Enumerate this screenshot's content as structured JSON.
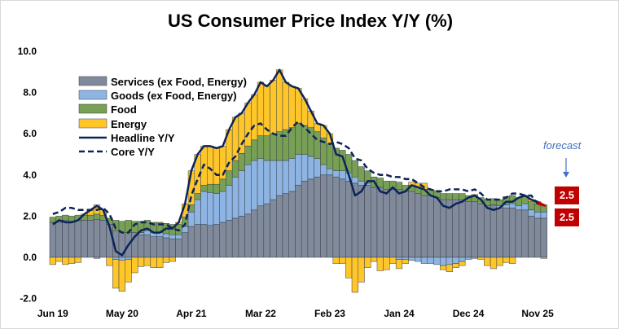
{
  "chart_data": {
    "type": "bar",
    "subtype": "stacked bar with line overlays",
    "title": "US Consumer Price Index Y/Y (%)",
    "xlabel": "",
    "ylabel": "",
    "ylim": [
      -2,
      10
    ],
    "yticks": [
      "10.0",
      "8.0",
      "6.0",
      "4.0",
      "2.0",
      "0.0",
      "-2.0"
    ],
    "ytick_values": [
      10,
      8,
      6,
      4,
      2,
      0,
      -2
    ],
    "xtick_labels": [
      "Jun 19",
      "May 20",
      "Apr 21",
      "Mar 22",
      "Feb 23",
      "Jan 24",
      "Dec 24",
      "Nov 25"
    ],
    "x_start": "Jun 2019",
    "x_end": "Dec 2025",
    "grid": false,
    "legend_position": "top-left",
    "series": [
      {
        "name": "Services (ex Food, Energy)",
        "kind": "bar",
        "color": "#808a9b",
        "values": [
          1.7,
          1.7,
          1.75,
          1.75,
          1.8,
          1.8,
          1.8,
          1.85,
          1.8,
          1.6,
          1.3,
          1.2,
          1.2,
          1.2,
          1.1,
          1.1,
          1.0,
          1.0,
          0.95,
          0.9,
          0.9,
          1.2,
          1.5,
          1.6,
          1.6,
          1.55,
          1.6,
          1.7,
          1.8,
          1.9,
          2.0,
          2.1,
          2.3,
          2.5,
          2.6,
          2.8,
          3.0,
          3.1,
          3.2,
          3.5,
          3.7,
          3.8,
          3.9,
          4.0,
          4.0,
          3.9,
          3.8,
          3.7,
          3.6,
          3.5,
          3.5,
          3.4,
          3.4,
          3.3,
          3.3,
          3.3,
          3.2,
          3.2,
          3.1,
          3.0,
          3.0,
          2.9,
          2.8,
          2.8,
          2.8,
          2.8,
          2.7,
          2.7,
          2.6,
          2.5,
          2.5,
          2.4,
          2.4,
          2.4,
          2.3,
          2.3,
          2.0,
          1.9,
          1.9
        ]
      },
      {
        "name": "Goods (ex Food, Energy)",
        "kind": "bar",
        "color": "#8db4e2",
        "values": [
          0.0,
          0.05,
          0.05,
          0.0,
          0.0,
          0.0,
          0.0,
          -0.05,
          0.0,
          0.0,
          -0.1,
          -0.15,
          -0.1,
          0.0,
          0.1,
          0.2,
          0.2,
          0.2,
          0.2,
          0.2,
          0.2,
          0.3,
          0.7,
          1.2,
          1.6,
          1.6,
          1.5,
          1.5,
          1.7,
          2.0,
          2.2,
          2.4,
          2.4,
          2.3,
          2.1,
          1.9,
          1.7,
          1.6,
          1.6,
          1.5,
          1.3,
          1.1,
          0.9,
          0.5,
          0.3,
          0.3,
          0.4,
          0.4,
          0.3,
          0.2,
          0.1,
          0.0,
          0.0,
          0.0,
          0.0,
          -0.1,
          -0.1,
          -0.15,
          -0.2,
          -0.3,
          -0.3,
          -0.35,
          -0.4,
          -0.35,
          -0.3,
          -0.2,
          -0.1,
          -0.05,
          0.0,
          0.0,
          0.05,
          0.1,
          0.15,
          0.2,
          0.2,
          0.3,
          0.3,
          0.3,
          0.3
        ]
      },
      {
        "name": "Food",
        "kind": "bar",
        "color": "#77a055",
        "values": [
          0.25,
          0.25,
          0.25,
          0.25,
          0.25,
          0.25,
          0.25,
          0.25,
          0.25,
          0.3,
          0.5,
          0.55,
          0.6,
          0.55,
          0.55,
          0.5,
          0.5,
          0.5,
          0.5,
          0.5,
          0.5,
          0.45,
          0.35,
          0.3,
          0.3,
          0.4,
          0.45,
          0.6,
          0.7,
          0.8,
          0.85,
          0.9,
          1.0,
          1.1,
          1.2,
          1.3,
          1.4,
          1.5,
          1.5,
          1.5,
          1.4,
          1.4,
          1.3,
          1.3,
          1.2,
          1.1,
          1.0,
          0.9,
          0.8,
          0.7,
          0.6,
          0.5,
          0.45,
          0.4,
          0.4,
          0.35,
          0.3,
          0.3,
          0.3,
          0.3,
          0.3,
          0.3,
          0.3,
          0.3,
          0.3,
          0.3,
          0.3,
          0.3,
          0.3,
          0.3,
          0.3,
          0.3,
          0.4,
          0.4,
          0.4,
          0.4,
          0.4,
          0.4,
          0.35
        ]
      },
      {
        "name": "Energy",
        "kind": "bar",
        "color": "#ffc629",
        "values": [
          -0.35,
          -0.2,
          -0.35,
          -0.3,
          -0.25,
          0.05,
          0.25,
          0.45,
          0.25,
          -0.4,
          -1.4,
          -1.5,
          -1.1,
          -0.75,
          -0.45,
          -0.4,
          -0.5,
          -0.5,
          -0.25,
          -0.2,
          0.1,
          0.65,
          1.65,
          1.9,
          1.9,
          1.85,
          1.75,
          1.6,
          2.0,
          2.1,
          1.95,
          2.1,
          2.2,
          2.6,
          2.4,
          2.6,
          3.0,
          2.3,
          2.0,
          1.7,
          1.3,
          0.8,
          0.4,
          0.6,
          0.5,
          -0.3,
          -0.3,
          -1.0,
          -1.7,
          -1.2,
          -0.5,
          -0.2,
          -0.65,
          -0.6,
          -0.3,
          -0.45,
          -0.2,
          0.15,
          0.2,
          0.3,
          0.0,
          0.05,
          -0.2,
          -0.35,
          -0.2,
          -0.2,
          0.0,
          0.05,
          -0.1,
          -0.4,
          -0.55,
          -0.4,
          -0.25,
          -0.3,
          0.0,
          0.0,
          0.1,
          0.1,
          -0.05
        ]
      },
      {
        "name": "Headline Y/Y",
        "kind": "line",
        "color": "#0d2458",
        "style": "solid",
        "values": [
          1.6,
          1.8,
          1.7,
          1.7,
          1.8,
          2.1,
          2.3,
          2.5,
          2.3,
          1.5,
          0.3,
          0.1,
          0.6,
          1.0,
          1.3,
          1.4,
          1.2,
          1.2,
          1.4,
          1.4,
          1.7,
          2.6,
          4.2,
          5.0,
          5.4,
          5.4,
          5.3,
          5.4,
          6.2,
          6.8,
          7.0,
          7.5,
          7.9,
          8.5,
          8.3,
          8.6,
          9.1,
          8.5,
          8.3,
          8.2,
          7.7,
          7.1,
          6.5,
          6.4,
          6.0,
          5.0,
          4.9,
          4.0,
          3.0,
          3.2,
          3.7,
          3.7,
          3.2,
          3.1,
          3.4,
          3.1,
          3.2,
          3.5,
          3.4,
          3.3,
          3.0,
          2.9,
          2.5,
          2.4,
          2.6,
          2.7,
          2.9,
          3.0,
          2.8,
          2.4,
          2.3,
          2.4,
          2.7,
          2.7,
          2.9,
          3.0,
          2.8,
          2.7,
          2.5
        ]
      },
      {
        "name": "Core Y/Y",
        "kind": "line",
        "color": "#0d2458",
        "style": "dashed",
        "values": [
          2.1,
          2.2,
          2.4,
          2.4,
          2.3,
          2.3,
          2.3,
          2.3,
          2.4,
          2.1,
          1.4,
          1.2,
          1.2,
          1.6,
          1.7,
          1.7,
          1.6,
          1.6,
          1.6,
          1.4,
          1.3,
          1.6,
          3.0,
          3.8,
          4.5,
          4.3,
          4.0,
          4.0,
          4.6,
          4.9,
          5.5,
          6.0,
          6.4,
          6.5,
          6.2,
          6.0,
          5.9,
          5.9,
          6.3,
          6.6,
          6.3,
          6.0,
          5.7,
          5.6,
          5.5,
          5.6,
          5.5,
          5.3,
          4.8,
          4.7,
          4.3,
          4.1,
          4.0,
          4.0,
          3.9,
          3.9,
          3.8,
          3.8,
          3.6,
          3.4,
          3.3,
          3.2,
          3.2,
          3.3,
          3.3,
          3.3,
          3.2,
          3.3,
          3.1,
          2.8,
          2.8,
          2.8,
          2.9,
          3.1,
          3.1,
          3.0,
          3.0,
          2.6,
          2.5
        ]
      }
    ],
    "annotations": {
      "forecast_label": "forecast",
      "forecast_color": "#c00000",
      "headline_forecast": "2.5",
      "core_forecast": "2.5"
    }
  }
}
